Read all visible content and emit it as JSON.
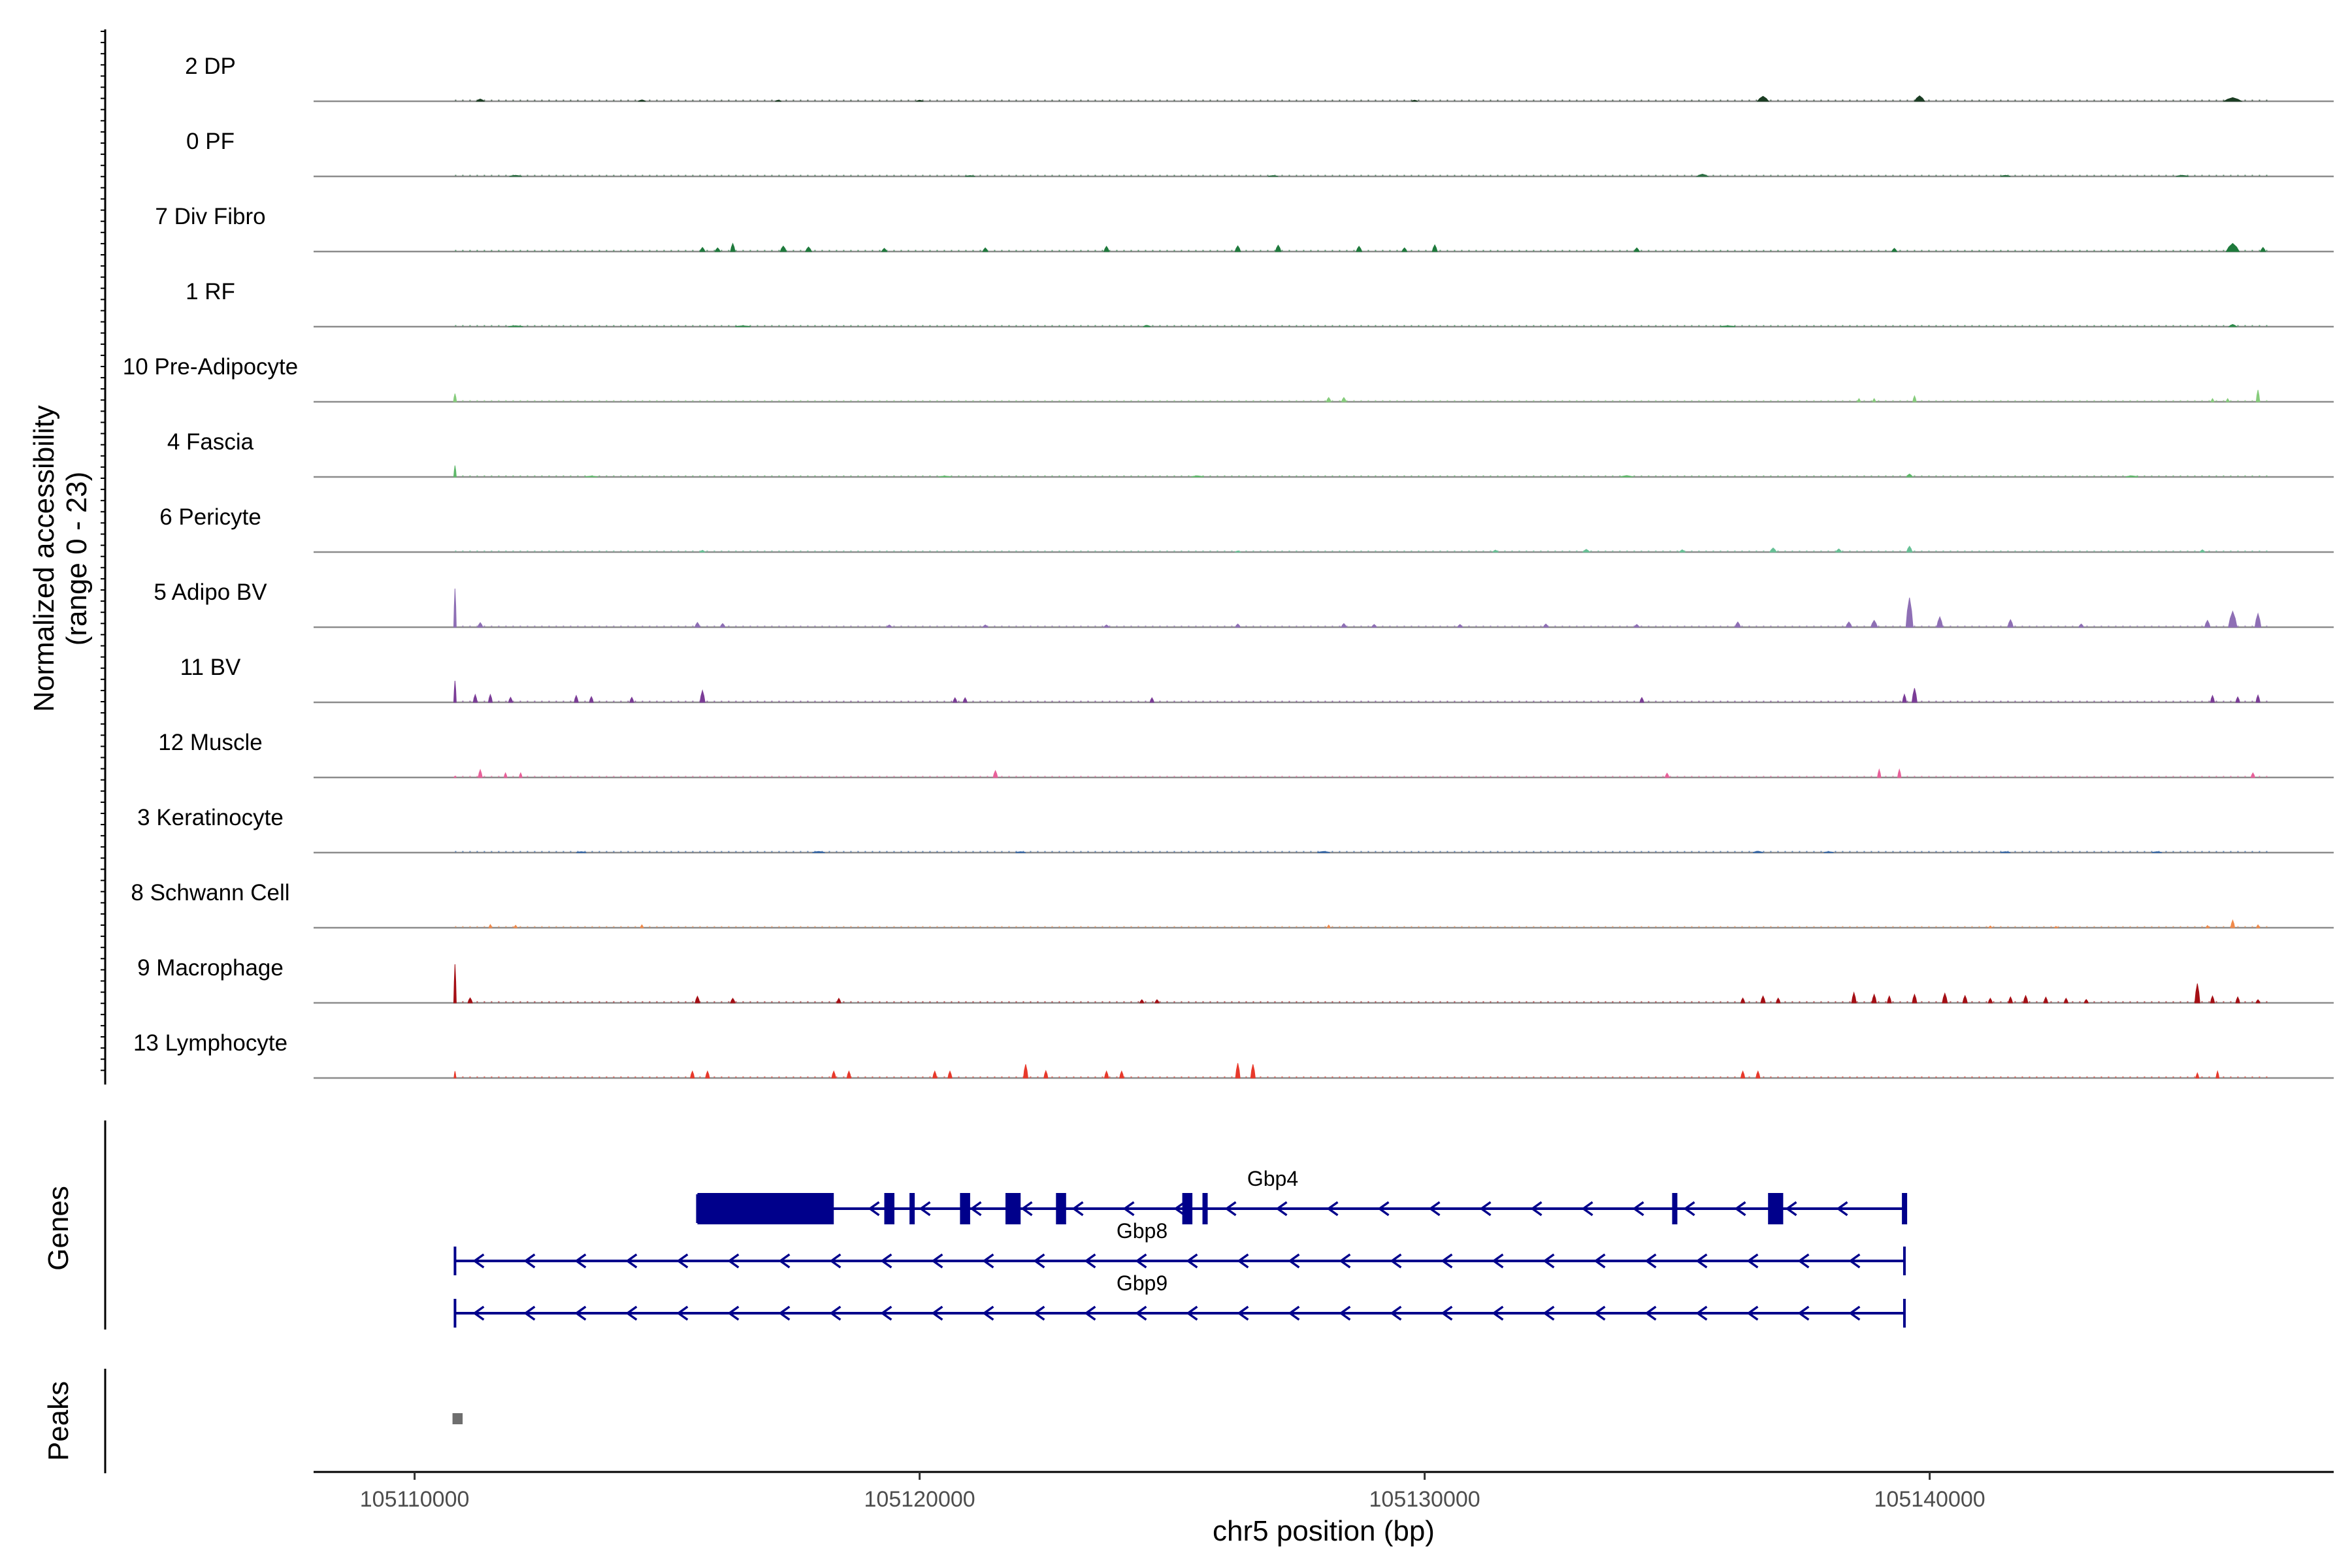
{
  "chart_data": {
    "type": "area",
    "title": "",
    "ylabel_line1": "Normalized accessibility",
    "ylabel_line2": "(range 0 - 23)",
    "xlabel": "chr5 position (bp)",
    "xlim": [
      105108000,
      105148000
    ],
    "x_ticks": [
      105110000,
      105120000,
      105130000,
      105140000
    ],
    "x_tick_labels": [
      "105110000",
      "105120000",
      "105130000",
      "105140000"
    ],
    "ylim": [
      0,
      23
    ],
    "tracks": [
      {
        "name": "2 DP",
        "color": "#1b3d23",
        "peaks": [
          [
            105111300,
            1.0,
            150
          ],
          [
            105114500,
            0.6,
            150
          ],
          [
            105117200,
            0.5,
            120
          ],
          [
            105120000,
            0.5,
            120
          ],
          [
            105129800,
            0.5,
            120
          ],
          [
            105136700,
            2.2,
            220
          ],
          [
            105139800,
            2.4,
            200
          ],
          [
            105146000,
            1.6,
            350
          ]
        ]
      },
      {
        "name": "0 PF",
        "color": "#2d6e43",
        "peaks": [
          [
            105112000,
            0.5,
            250
          ],
          [
            105121000,
            0.4,
            200
          ],
          [
            105127000,
            0.4,
            200
          ],
          [
            105135500,
            1.0,
            220
          ],
          [
            105141500,
            0.5,
            200
          ],
          [
            105145000,
            0.5,
            250
          ]
        ]
      },
      {
        "name": "7 Div Fibro",
        "color": "#1e7a3c",
        "peaks": [
          [
            105115700,
            1.8,
            100
          ],
          [
            105116000,
            1.6,
            100
          ],
          [
            105116300,
            3.5,
            90
          ],
          [
            105117300,
            2.4,
            120
          ],
          [
            105117800,
            2.0,
            120
          ],
          [
            105119300,
            1.4,
            100
          ],
          [
            105121300,
            1.6,
            100
          ],
          [
            105123700,
            2.3,
            100
          ],
          [
            105126300,
            2.5,
            110
          ],
          [
            105127100,
            2.8,
            110
          ],
          [
            105128700,
            2.3,
            110
          ],
          [
            105129600,
            1.6,
            100
          ],
          [
            105130200,
            2.9,
            100
          ],
          [
            105134200,
            1.6,
            100
          ],
          [
            105139300,
            1.4,
            100
          ],
          [
            105146000,
            3.6,
            260
          ],
          [
            105146600,
            1.8,
            100
          ]
        ]
      },
      {
        "name": "1 RF",
        "color": "#2e8b4b",
        "peaks": [
          [
            105112000,
            0.4,
            300
          ],
          [
            105116500,
            0.4,
            300
          ],
          [
            105124500,
            0.6,
            150
          ],
          [
            105136000,
            0.4,
            300
          ],
          [
            105146000,
            1.0,
            150
          ]
        ]
      },
      {
        "name": "10 Pre-Adipocyte",
        "color": "#86cc7c",
        "peaks": [
          [
            105110800,
            3.6,
            60
          ],
          [
            105128100,
            1.9,
            90
          ],
          [
            105128400,
            1.9,
            90
          ],
          [
            105138600,
            1.4,
            60
          ],
          [
            105138900,
            1.4,
            60
          ],
          [
            105139700,
            2.6,
            70
          ],
          [
            105145600,
            1.4,
            60
          ],
          [
            105145900,
            1.4,
            60
          ],
          [
            105146500,
            5.2,
            70
          ]
        ]
      },
      {
        "name": "4 Fascia",
        "color": "#5fb86a",
        "peaks": [
          [
            105110800,
            5.0,
            50
          ],
          [
            105113500,
            0.4,
            250
          ],
          [
            105120500,
            0.4,
            250
          ],
          [
            105125500,
            0.5,
            250
          ],
          [
            105134000,
            0.6,
            250
          ],
          [
            105139600,
            1.3,
            120
          ],
          [
            105144000,
            0.5,
            250
          ]
        ]
      },
      {
        "name": "6 Pericyte",
        "color": "#67c196",
        "peaks": [
          [
            105115700,
            0.8,
            100
          ],
          [
            105126300,
            0.5,
            100
          ],
          [
            105131400,
            0.9,
            100
          ],
          [
            105133200,
            1.2,
            130
          ],
          [
            105135100,
            1.0,
            110
          ],
          [
            105136900,
            1.8,
            130
          ],
          [
            105138200,
            1.4,
            110
          ],
          [
            105139600,
            2.6,
            110
          ],
          [
            105145400,
            1.0,
            100
          ]
        ]
      },
      {
        "name": "5 Adipo BV",
        "color": "#8e6fb5",
        "peaks": [
          [
            105110800,
            17.0,
            50
          ],
          [
            105111300,
            2.0,
            100
          ],
          [
            105115600,
            2.1,
            100
          ],
          [
            105116100,
            1.6,
            100
          ],
          [
            105119400,
            1.0,
            100
          ],
          [
            105121300,
            1.0,
            100
          ],
          [
            105123700,
            1.0,
            100
          ],
          [
            105126300,
            1.4,
            100
          ],
          [
            105128400,
            1.6,
            100
          ],
          [
            105129000,
            1.2,
            100
          ],
          [
            105130700,
            1.2,
            100
          ],
          [
            105132400,
            1.4,
            100
          ],
          [
            105134200,
            1.2,
            100
          ],
          [
            105136200,
            2.3,
            110
          ],
          [
            105138400,
            2.3,
            120
          ],
          [
            105138900,
            3.0,
            130
          ],
          [
            105139600,
            13.0,
            140
          ],
          [
            105140200,
            4.5,
            120
          ],
          [
            105141600,
            3.3,
            110
          ],
          [
            105143000,
            1.4,
            100
          ],
          [
            105145500,
            3.0,
            110
          ],
          [
            105146000,
            7.0,
            170
          ],
          [
            105146500,
            6.0,
            120
          ]
        ]
      },
      {
        "name": "11 BV",
        "color": "#7b3c97",
        "peaks": [
          [
            105110800,
            9.5,
            50
          ],
          [
            105111200,
            3.4,
            80
          ],
          [
            105111500,
            3.4,
            80
          ],
          [
            105111900,
            2.2,
            80
          ],
          [
            105113200,
            3.0,
            80
          ],
          [
            105113500,
            2.5,
            80
          ],
          [
            105114300,
            2.2,
            80
          ],
          [
            105115700,
            5.2,
            100
          ],
          [
            105120700,
            2.0,
            80
          ],
          [
            105120900,
            2.0,
            80
          ],
          [
            105124600,
            2.0,
            80
          ],
          [
            105134300,
            2.1,
            80
          ],
          [
            105139700,
            6.2,
            100
          ],
          [
            105139500,
            3.5,
            80
          ],
          [
            105145600,
            3.0,
            80
          ],
          [
            105146100,
            2.4,
            80
          ],
          [
            105146500,
            3.2,
            80
          ]
        ]
      },
      {
        "name": "12 Muscle",
        "color": "#e8619a",
        "peaks": [
          [
            105110800,
            0.6,
            40
          ],
          [
            105111300,
            3.4,
            80
          ],
          [
            105111800,
            2.0,
            60
          ],
          [
            105112100,
            2.0,
            60
          ],
          [
            105121500,
            3.0,
            90
          ],
          [
            105134800,
            1.9,
            80
          ],
          [
            105139000,
            3.5,
            70
          ],
          [
            105139400,
            3.5,
            70
          ],
          [
            105146400,
            2.0,
            80
          ]
        ]
      },
      {
        "name": "3 Keratinocyte",
        "color": "#2a5fa3",
        "peaks": [
          [
            105113300,
            0.4,
            200
          ],
          [
            105118000,
            0.5,
            250
          ],
          [
            105122000,
            0.4,
            200
          ],
          [
            105128000,
            0.5,
            250
          ],
          [
            105136600,
            0.6,
            200
          ],
          [
            105138000,
            0.4,
            200
          ],
          [
            105141500,
            0.4,
            200
          ],
          [
            105144500,
            0.4,
            200
          ]
        ]
      },
      {
        "name": "8 Schwann Cell",
        "color": "#f08a4b",
        "peaks": [
          [
            105111500,
            1.4,
            60
          ],
          [
            105112000,
            1.1,
            60
          ],
          [
            105114500,
            1.3,
            60
          ],
          [
            105128100,
            1.2,
            60
          ],
          [
            105141200,
            0.8,
            60
          ],
          [
            105142500,
            0.6,
            60
          ],
          [
            105145500,
            1.0,
            60
          ],
          [
            105146000,
            3.3,
            80
          ],
          [
            105146500,
            1.3,
            60
          ]
        ]
      },
      {
        "name": "9 Macrophage",
        "color": "#a50f15",
        "peaks": [
          [
            105110800,
            17.0,
            50
          ],
          [
            105111100,
            2.2,
            90
          ],
          [
            105115600,
            2.9,
            90
          ],
          [
            105116300,
            2.0,
            90
          ],
          [
            105118400,
            2.0,
            80
          ],
          [
            105124400,
            1.4,
            80
          ],
          [
            105124700,
            1.4,
            80
          ],
          [
            105136300,
            2.1,
            80
          ],
          [
            105136700,
            3.0,
            90
          ],
          [
            105137000,
            2.1,
            80
          ],
          [
            105138500,
            4.5,
            90
          ],
          [
            105138900,
            3.7,
            90
          ],
          [
            105139200,
            3.0,
            80
          ],
          [
            105139700,
            3.7,
            90
          ],
          [
            105140300,
            4.2,
            100
          ],
          [
            105140700,
            3.2,
            90
          ],
          [
            105141200,
            2.0,
            80
          ],
          [
            105141600,
            2.6,
            80
          ],
          [
            105141900,
            3.2,
            90
          ],
          [
            105142300,
            2.5,
            80
          ],
          [
            105142700,
            2.0,
            80
          ],
          [
            105143100,
            1.5,
            80
          ],
          [
            105145300,
            8.5,
            100
          ],
          [
            105145600,
            3.0,
            80
          ],
          [
            105146100,
            2.6,
            80
          ],
          [
            105146500,
            1.4,
            80
          ]
        ]
      },
      {
        "name": "13 Lymphocyte",
        "color": "#e8392b",
        "peaks": [
          [
            105110800,
            3.0,
            30
          ],
          [
            105115500,
            3.0,
            80
          ],
          [
            105115800,
            3.0,
            80
          ],
          [
            105118300,
            3.0,
            80
          ],
          [
            105118600,
            3.0,
            80
          ],
          [
            105120300,
            3.0,
            80
          ],
          [
            105120600,
            3.0,
            80
          ],
          [
            105122100,
            6.0,
            90
          ],
          [
            105122500,
            3.2,
            80
          ],
          [
            105123700,
            3.0,
            80
          ],
          [
            105124000,
            3.0,
            80
          ],
          [
            105126300,
            6.5,
            90
          ],
          [
            105126600,
            6.0,
            90
          ],
          [
            105136300,
            3.0,
            80
          ],
          [
            105136600,
            3.0,
            80
          ],
          [
            105145300,
            2.2,
            60
          ],
          [
            105145700,
            3.0,
            60
          ]
        ]
      }
    ],
    "genes_label": "Genes",
    "genes": [
      {
        "name": "Gbp4",
        "color": "#00008b",
        "start": 105115600,
        "end": 105139500,
        "strand": "-",
        "exons": [
          [
            105115600,
            105118300
          ],
          [
            105119300,
            105119500
          ],
          [
            105119800,
            105119900
          ],
          [
            105120800,
            105121000
          ],
          [
            105121700,
            105122000
          ],
          [
            105122700,
            105122900
          ],
          [
            105125200,
            105125400
          ],
          [
            105125600,
            105125700
          ],
          [
            105134900,
            105135000
          ],
          [
            105136800,
            105137100
          ],
          [
            105139450,
            105139550
          ]
        ]
      },
      {
        "name": "Gbp8",
        "color": "#00008b",
        "start": 105110800,
        "end": 105139500,
        "strand": "-",
        "exons": []
      },
      {
        "name": "Gbp9",
        "color": "#00008b",
        "start": 105110800,
        "end": 105139500,
        "strand": "-",
        "exons": []
      }
    ],
    "peaks_label": "Peaks",
    "peak_regions": [
      [
        105110750,
        105110950
      ]
    ],
    "peak_color": "#6e6e6e"
  }
}
